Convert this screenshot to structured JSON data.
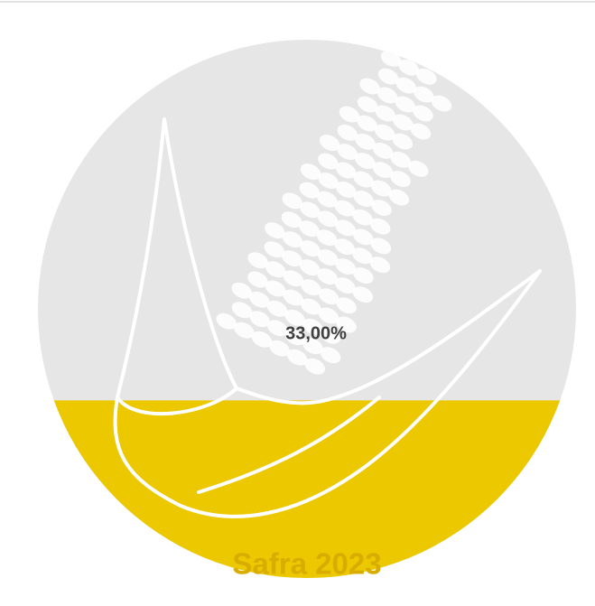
{
  "chart_data": {
    "type": "gauge",
    "title": "Safra 2023",
    "value": 33,
    "value_label": "33,00%",
    "ylim": [
      0,
      100
    ],
    "fill_color": "#ebc800",
    "background_color": "#e6e6e6",
    "title_color": "#d8ad00"
  }
}
